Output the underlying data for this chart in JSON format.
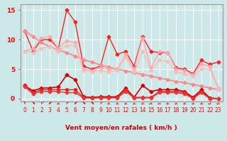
{
  "x": [
    0,
    1,
    2,
    3,
    4,
    5,
    6,
    7,
    8,
    9,
    10,
    11,
    12,
    13,
    14,
    15,
    16,
    17,
    18,
    19,
    20,
    21,
    22,
    23
  ],
  "series": [
    {
      "name": "red_wavy_top",
      "color": "#ff2020",
      "linewidth": 1.0,
      "marker": "D",
      "markersize": 2.5,
      "y": [
        11.5,
        8.0,
        10.0,
        10.0,
        8.5,
        15.0,
        13.0,
        5.5,
        5.0,
        5.5,
        10.5,
        7.5,
        8.0,
        5.5,
        10.5,
        8.0,
        7.8,
        7.8,
        5.2,
        5.0,
        4.2,
        6.5,
        5.8,
        6.2
      ]
    },
    {
      "name": "pink_straight_decline",
      "color": "#ff8888",
      "linewidth": 1.3,
      "marker": "D",
      "markersize": 2.5,
      "y": [
        11.5,
        10.5,
        9.5,
        8.8,
        8.2,
        7.8,
        7.2,
        6.6,
        6.2,
        5.7,
        5.3,
        5.0,
        4.7,
        4.4,
        4.1,
        3.8,
        3.5,
        3.2,
        2.9,
        2.7,
        2.4,
        2.1,
        1.8,
        1.5
      ]
    },
    {
      "name": "pink_wavy_upper",
      "color": "#ffaaaa",
      "linewidth": 1.0,
      "marker": "D",
      "markersize": 2.5,
      "y": [
        8.0,
        8.5,
        10.3,
        10.5,
        8.5,
        9.8,
        9.5,
        5.0,
        4.8,
        5.2,
        5.0,
        5.0,
        7.5,
        5.0,
        10.3,
        5.2,
        8.0,
        7.8,
        5.0,
        4.8,
        4.0,
        5.8,
        5.5,
        1.8
      ]
    },
    {
      "name": "pink_wavy_lower",
      "color": "#ffbbbb",
      "linewidth": 1.0,
      "marker": "D",
      "markersize": 2.5,
      "y": [
        8.0,
        7.8,
        8.5,
        8.8,
        8.0,
        9.0,
        9.0,
        4.8,
        4.5,
        4.8,
        4.5,
        4.8,
        7.0,
        4.5,
        8.0,
        4.8,
        6.5,
        6.3,
        4.5,
        4.2,
        3.8,
        5.0,
        5.0,
        1.5
      ]
    },
    {
      "name": "dark_red_line1",
      "color": "#cc0000",
      "linewidth": 1.2,
      "marker": "D",
      "markersize": 2.5,
      "y": [
        2.2,
        1.3,
        1.8,
        1.8,
        2.0,
        4.0,
        3.2,
        0.3,
        0.2,
        0.3,
        0.3,
        0.3,
        1.8,
        0.2,
        2.2,
        1.2,
        1.5,
        1.5,
        1.5,
        1.2,
        0.2,
        1.5,
        0.1,
        0.0
      ]
    },
    {
      "name": "dark_red_line2",
      "color": "#dd2222",
      "linewidth": 1.0,
      "marker": "D",
      "markersize": 2.5,
      "y": [
        2.2,
        1.0,
        1.5,
        1.5,
        1.5,
        1.5,
        1.5,
        0.2,
        0.1,
        0.2,
        0.2,
        0.2,
        1.5,
        0.2,
        0.2,
        0.2,
        1.2,
        1.2,
        1.2,
        1.0,
        0.1,
        1.2,
        0.0,
        0.0
      ]
    },
    {
      "name": "dark_red_flat",
      "color": "#ee3333",
      "linewidth": 1.0,
      "marker": "D",
      "markersize": 2.5,
      "y": [
        2.0,
        0.8,
        1.2,
        1.2,
        1.2,
        1.0,
        1.0,
        0.1,
        0.1,
        0.1,
        0.1,
        0.1,
        1.2,
        0.1,
        0.1,
        0.1,
        1.0,
        1.0,
        1.0,
        0.8,
        0.0,
        1.0,
        0.0,
        0.0
      ]
    }
  ],
  "xlim": [
    -0.5,
    23.5
  ],
  "ylim": [
    -0.5,
    16
  ],
  "yticks": [
    0,
    5,
    10,
    15
  ],
  "xticks": [
    0,
    1,
    2,
    3,
    4,
    5,
    6,
    7,
    8,
    9,
    10,
    11,
    12,
    13,
    14,
    15,
    16,
    17,
    18,
    19,
    20,
    21,
    22,
    23
  ],
  "xlabel": "Vent moyen/en rafales ( km/h )",
  "bg_color": "#cce8e8",
  "grid_color": "#ffffff",
  "tick_color": "#ff0000",
  "label_color": "#cc0000",
  "axis_color": "#999999",
  "wind_arrows": [
    "↑",
    "⬉",
    "↗",
    "⬈",
    "←",
    "↗",
    "⬈",
    "⬊",
    "⬉",
    "↗",
    "←",
    "←",
    "←",
    "←",
    "←",
    "←",
    "←",
    "←",
    "←",
    "←",
    "←",
    "←",
    "←",
    "←"
  ]
}
